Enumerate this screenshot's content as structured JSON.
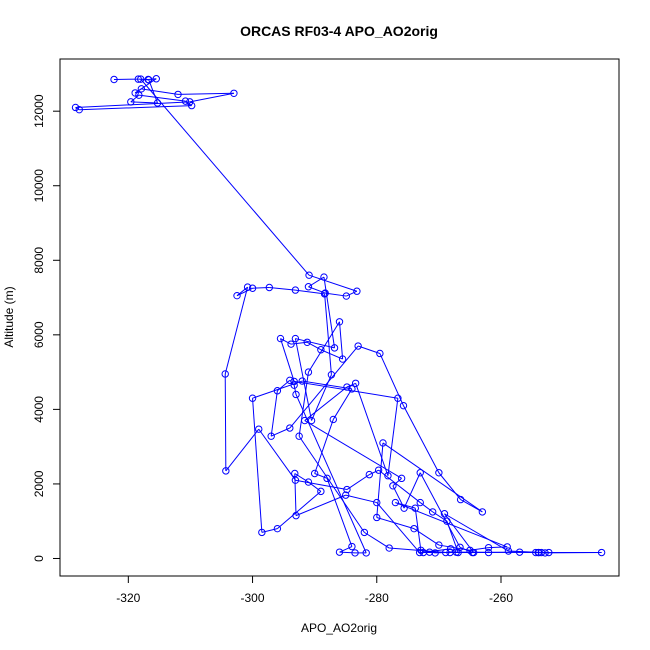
{
  "chart_data": {
    "type": "line",
    "title": "ORCAS RF03-4 APO_AO2orig",
    "xlabel": "APO_AO2orig",
    "ylabel": "Altitude (m)",
    "xlim": [
      -331,
      -241
    ],
    "ylim": [
      -470,
      13400
    ],
    "xticks": [
      -320,
      -300,
      -280,
      -260
    ],
    "yticks": [
      0,
      2000,
      4000,
      6000,
      8000,
      10000,
      12000
    ],
    "series": [
      {
        "color": "#0000ff",
        "marker": "open-circle",
        "x": [
          -322.3,
          -318.4,
          -316.8,
          -315.5,
          -318.9,
          -317.9,
          -312.0,
          -303.0,
          -310.1,
          -328.5,
          -327.9,
          -309.8,
          -310.8,
          -318.3,
          -319.6,
          -315.3,
          -316.7,
          -318.0,
          -290.9,
          -283.2,
          -284.9,
          -288.3,
          -291.0,
          -288.5,
          -286.8,
          -293.1,
          -290.5,
          -287.3,
          -288.4,
          -293.1,
          -297.3,
          -300.0,
          -302.5,
          -300.8,
          -304.4,
          -304.3,
          -299.0,
          -293.1,
          -284.8,
          -281.2,
          -279.7,
          -273.0,
          -271.0,
          -268.7,
          -266.9,
          -264.4,
          -269.1,
          -258.8,
          -253.5,
          -252.3,
          -243.8,
          -252.9,
          -254.0,
          -257.0,
          -262.0,
          -268.2,
          -271.5,
          -273.1,
          -280.0,
          -285.0,
          -293.0,
          -293.2,
          -291.0,
          -289.0,
          -296.0,
          -298.5,
          -300.0,
          -292.0,
          -284.0,
          -287.0,
          -290.0,
          -288.0,
          -284.0,
          -286.0,
          -283.5,
          -281.7,
          -293.0,
          -293.3,
          -294.0,
          -296.0,
          -297.0,
          -294.0,
          -283.0,
          -279.5,
          -275.7,
          -270.0,
          -266.5,
          -263.0,
          -279.0,
          -280.0,
          -274.0,
          -270.0,
          -265.0,
          -262.0,
          -259.0,
          -277.0,
          -273.8,
          -272.9,
          -270.6,
          -268.9,
          -278.0,
          -282.0,
          -292.5,
          -291.0,
          -286.0,
          -285.5,
          -289.0,
          -291.2,
          -293.8,
          -295.5,
          -293.3,
          -276.6,
          -278.2,
          -283.4,
          -284.8,
          -291.6,
          -276.0,
          -277.4,
          -275.6,
          -273.0,
          -266.6,
          -264.6,
          -272.5,
          -268.1,
          -267.2,
          -253.9,
          -254.4
        ],
        "y": [
          12850,
          12860,
          12850,
          12870,
          12490,
          12600,
          12450,
          12480,
          12250,
          12100,
          12040,
          12150,
          12270,
          12430,
          12250,
          12220,
          12840,
          12860,
          7600,
          7170,
          7040,
          7120,
          7290,
          7550,
          5650,
          5900,
          3700,
          4930,
          7100,
          7200,
          7270,
          7250,
          7050,
          7280,
          4950,
          2350,
          3470,
          2100,
          1850,
          2250,
          2370,
          1500,
          1250,
          1000,
          160,
          160,
          1200,
          200,
          160,
          160,
          160,
          150,
          160,
          170,
          160,
          160,
          170,
          160,
          1500,
          1700,
          1150,
          2280,
          2050,
          1800,
          800,
          700,
          4300,
          4760,
          4550,
          3730,
          2280,
          2150,
          320,
          170,
          150,
          150,
          4400,
          4650,
          4780,
          4500,
          3280,
          3500,
          5700,
          5500,
          4100,
          2300,
          1580,
          1250,
          3100,
          1100,
          800,
          360,
          220,
          290,
          310,
          1500,
          1350,
          220,
          150,
          160,
          280,
          700,
          3280,
          5000,
          6350,
          5350,
          5600,
          5800,
          5750,
          5900,
          4750,
          4300,
          2220,
          4700,
          4600,
          3700,
          2150,
          1950,
          1350,
          2300,
          300,
          160,
          160,
          260,
          170,
          160,
          160
        ]
      }
    ]
  }
}
